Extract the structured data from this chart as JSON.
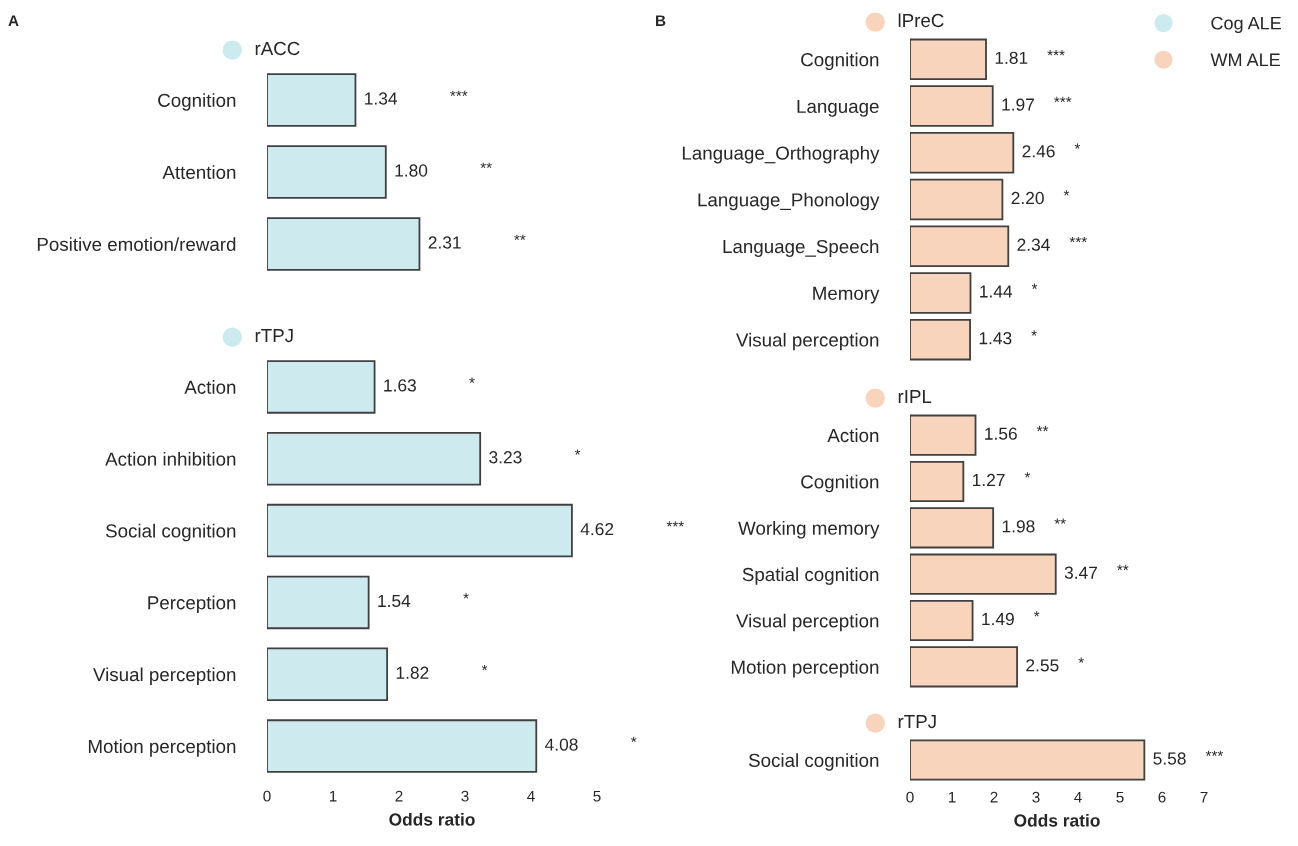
{
  "chart_data": [
    {
      "type": "bar",
      "orientation": "horizontal",
      "title": "rACC",
      "categories": [
        "Cognition",
        "Attention",
        "Positive emotion/reward"
      ],
      "series": [
        {
          "name": "Cog ALE",
          "color": "#cdeaee",
          "values": [
            1.34,
            1.8,
            2.31
          ],
          "value_labels": [
            "1.34",
            "1.80",
            "2.31"
          ]
        }
      ],
      "xlim": [
        0,
        5
      ],
      "tick_labels": "y",
      "legend": "top right",
      "annotations": [
        "A",
        "***",
        "**",
        "**"
      ]
    },
    {
      "type": "bar",
      "orientation": "horizontal",
      "title": "rTPJ",
      "categories": [
        "Action",
        "Action inhibition",
        "Social cognition",
        "Perception",
        "Visual perception",
        "Motion perception"
      ],
      "series": [
        {
          "color": "#cdeaee",
          "values": [
            1.63,
            3.23,
            4.62,
            1.54,
            1.82,
            4.08
          ],
          "value_labels": [
            "1.63",
            "3.23",
            "4.62",
            "1.54",
            "1.82",
            "4.08"
          ]
        }
      ],
      "xlim": [
        0,
        5
      ],
      "xticks": [
        0,
        1,
        2,
        3,
        4,
        5
      ],
      "xlabel": "Odds ratio",
      "annotations": [
        "*",
        "*",
        "***",
        "*",
        "*",
        "*"
      ]
    },
    {
      "type": "bar",
      "orientation": "horizontal",
      "title": "lPreC",
      "categories": [
        "Cognition",
        "Language",
        "Language_Orthography",
        "Language_Phonology",
        "Language_Speech",
        "Memory",
        "Visual perception"
      ],
      "series": [
        {
          "name": "WM ALE",
          "color": "#f9d4bc",
          "values": [
            1.81,
            1.97,
            2.46,
            2.2,
            2.34,
            1.44,
            1.43
          ],
          "value_labels": [
            "1.81",
            "1.97",
            "2.46",
            "2.20",
            "2.34",
            "1.44",
            "1.43"
          ]
        }
      ],
      "xlim": [
        0,
        7
      ],
      "tick_labels": "y",
      "legend": "top right",
      "annotations": [
        "B",
        "***",
        "***",
        "*",
        "*",
        "***",
        "*",
        "*"
      ]
    },
    {
      "type": "bar",
      "orientation": "horizontal",
      "title": "rIPL",
      "categories": [
        "Action",
        "Cognition",
        "Working memory",
        "Spatial cognition",
        "Visual perception",
        "Motion perception"
      ],
      "series": [
        {
          "color": "#f9d4bc",
          "values": [
            1.56,
            1.27,
            1.98,
            3.47,
            1.49,
            2.55
          ],
          "value_labels": [
            "1.56",
            "1.27",
            "1.98",
            "3.47",
            "1.49",
            "2.55"
          ]
        }
      ],
      "xlim": [
        0,
        7
      ],
      "tick_labels": "y",
      "annotations": [
        "**",
        "*",
        "**",
        "**",
        "*",
        "*"
      ]
    },
    {
      "type": "bar",
      "orientation": "horizontal",
      "title": "rTPJ",
      "categories": [
        "Social cognition"
      ],
      "series": [
        {
          "color": "#f9d4bc",
          "values": [
            5.58
          ],
          "value_labels": [
            "5.58"
          ]
        }
      ],
      "xlim": [
        0,
        7
      ],
      "xticks": [
        0,
        1,
        2,
        3,
        4,
        5,
        6,
        7
      ],
      "xlabel": "Odds ratio",
      "annotations": [
        "***"
      ]
    }
  ]
}
